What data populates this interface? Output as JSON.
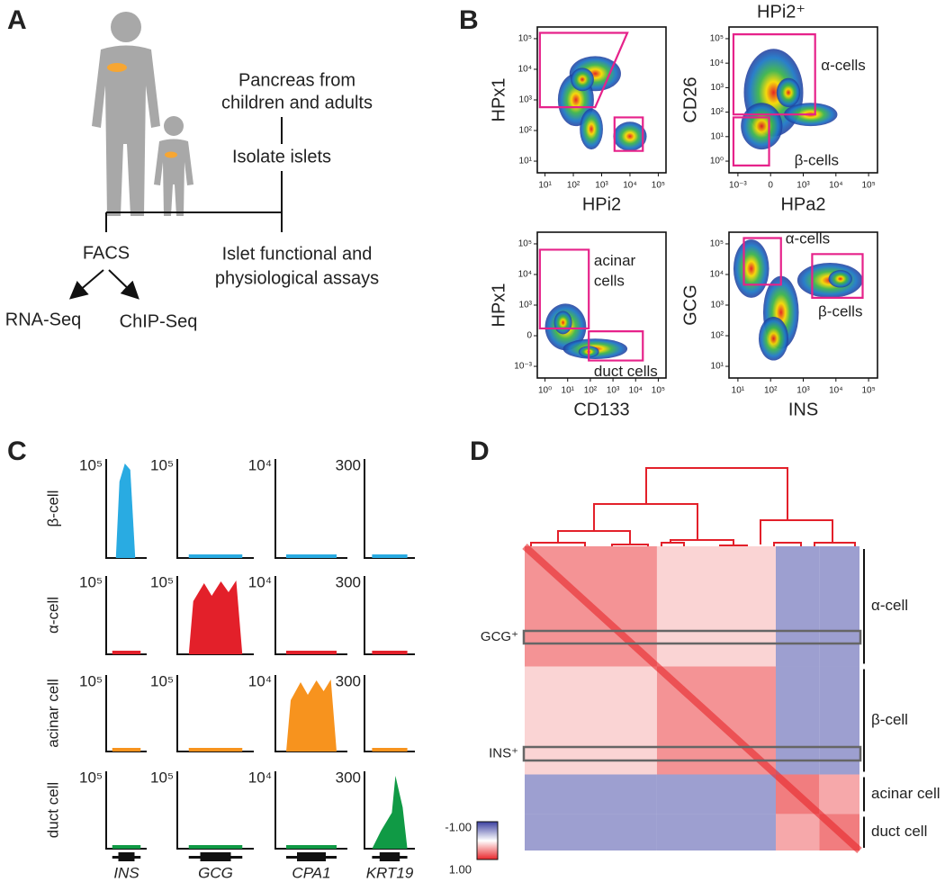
{
  "panel_a": {
    "label": "A",
    "pancreas": [
      "Pancreas from",
      "children and adults"
    ],
    "isolate": "Isolate islets",
    "facs": "FACS",
    "assays": [
      "Islet functional and",
      "physiological assays"
    ],
    "rna_seq": "RNA-Seq",
    "chip_seq": "ChIP-Seq"
  },
  "panel_b": {
    "label": "B",
    "header": "HPi2⁺",
    "plots": [
      {
        "xlabel": "HPi2",
        "ylabel": "HPx1",
        "xticks": [
          "10¹",
          "10²",
          "10³",
          "10⁴",
          "10⁵"
        ],
        "yticks": [
          "10¹",
          "10²",
          "10³",
          "10⁴",
          "10⁵"
        ],
        "gate_labels": []
      },
      {
        "xlabel": "HPa2",
        "ylabel": "CD26",
        "xticks": [
          "10⁻³",
          "0",
          "10³",
          "10⁴",
          "10⁵"
        ],
        "yticks": [
          "10⁰",
          "10¹",
          "10²",
          "10³",
          "10⁴",
          "10⁵"
        ],
        "gate_labels": [
          "α-cells",
          "β-cells"
        ]
      },
      {
        "xlabel": "CD133",
        "ylabel": "HPx1",
        "xticks": [
          "10⁰",
          "10¹",
          "10²",
          "10³",
          "10⁴",
          "10⁵"
        ],
        "yticks": [
          "10⁻³",
          "0",
          "10³",
          "10⁴",
          "10⁵"
        ],
        "gate_labels": [
          "acinar",
          "cells",
          "duct cells"
        ]
      },
      {
        "xlabel": "INS",
        "ylabel": "GCG",
        "xticks": [
          "10¹",
          "10²",
          "10³",
          "10⁴",
          "10⁵"
        ],
        "yticks": [
          "10¹",
          "10²",
          "10³",
          "10⁴",
          "10⁵"
        ],
        "gate_labels": [
          "α-cells",
          "β-cells"
        ]
      }
    ]
  },
  "panel_c": {
    "label": "C",
    "rows": [
      {
        "name": "β-cell",
        "color": "#29abe2"
      },
      {
        "name": "α-cell",
        "color": "#e3202a"
      },
      {
        "name": "acinar cell",
        "color": "#f7931e"
      },
      {
        "name": "duct cell",
        "color": "#109a45"
      }
    ],
    "genes": [
      "INS",
      "GCG",
      "CPA1",
      "KRT19"
    ],
    "scales": [
      "10⁵",
      "10⁵",
      "10⁴",
      "300"
    ]
  },
  "panel_d": {
    "label": "D",
    "groups": [
      "α-cell",
      "β-cell",
      "acinar cell",
      "duct cell"
    ],
    "highlights": [
      "GCG⁺",
      "INS⁺"
    ],
    "matrix": [
      [
        0.5,
        0.2,
        -0.5,
        -0.5
      ],
      [
        0.2,
        0.5,
        -0.5,
        -0.5
      ],
      [
        -0.5,
        -0.5,
        0.6,
        0.4
      ],
      [
        -0.5,
        -0.5,
        0.4,
        0.6
      ]
    ],
    "colorbar": [
      {
        "value": -1,
        "label": "-1.00"
      },
      {
        "value": 1,
        "label": "1.00"
      }
    ]
  }
}
